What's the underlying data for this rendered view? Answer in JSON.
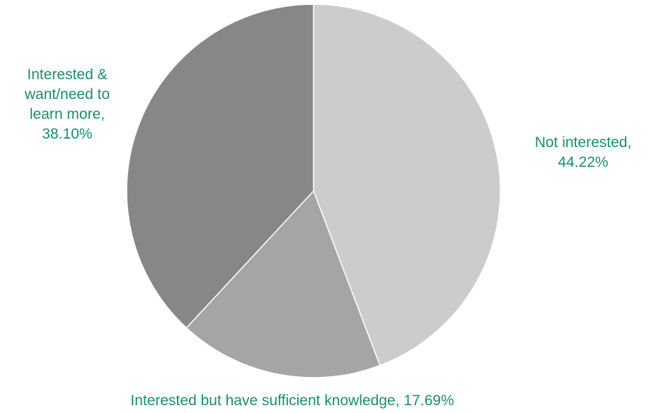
{
  "chart_data": {
    "type": "pie",
    "title": "",
    "start_angle_deg": 0,
    "direction": "clockwise",
    "label_color": "#1a9068",
    "slices": [
      {
        "label": "Not interested",
        "value": 44.22,
        "value_text": "44.22%",
        "color": "#cccccc",
        "label_lines": [
          "Not interested,",
          "44.22%"
        ]
      },
      {
        "label": "Interested but have sufficient knowledge",
        "value": 17.69,
        "value_text": "17.69%",
        "color": "#a5a5a5",
        "label_lines": [
          "Interested but have sufficient knowledge, 17.69%"
        ]
      },
      {
        "label": "Interested & want/need to learn more",
        "value": 38.1,
        "value_text": "38.10%",
        "color": "#878787",
        "label_lines": [
          "Interested &",
          "want/need to",
          "learn more,",
          "38.10%"
        ]
      }
    ],
    "legend": "none",
    "slice_border_color": "#ffffff"
  }
}
